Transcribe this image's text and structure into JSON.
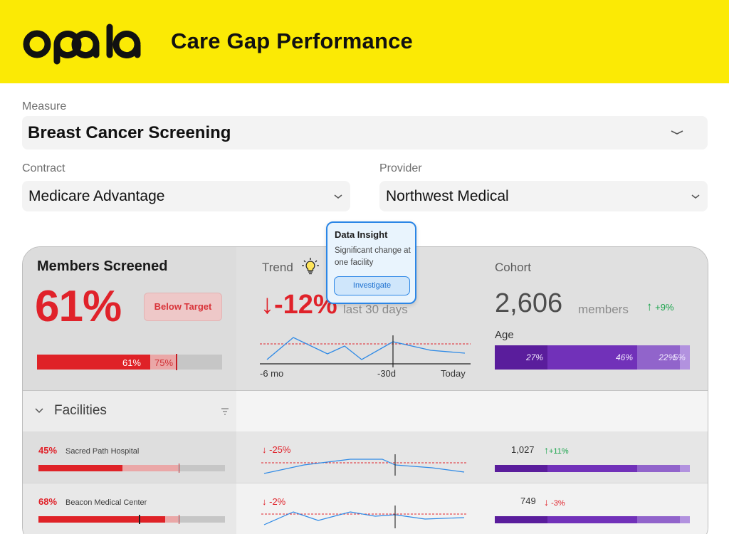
{
  "header": {
    "logo_text": "opala",
    "title": "Care Gap Performance",
    "bg_color": "#fbea05"
  },
  "filters": {
    "measure": {
      "label": "Measure",
      "value": "Breast Cancer Screening"
    },
    "contract": {
      "label": "Contract",
      "value": "Medicare Advantage"
    },
    "provider": {
      "label": "Provider",
      "value": "Northwest Medical"
    }
  },
  "summary": {
    "title": "Members Screened",
    "percent": "61%",
    "status_badge": "Below Target",
    "progress": {
      "value": 0.61,
      "target": 0.75,
      "value_label": "61%",
      "target_label": "75%"
    }
  },
  "trend": {
    "label": "Trend",
    "arrow": "↓",
    "change": "-12%",
    "period": "last 30 days",
    "x_labels": [
      "-6 mo",
      "-30d",
      "Today"
    ]
  },
  "cohort": {
    "label": "Cohort",
    "count": "2,606",
    "unit": "members",
    "change_arrow": "↑",
    "change": "+9%",
    "age_label": "Age",
    "age_segments": [
      {
        "label": "27%",
        "value": 27,
        "color": "#5a1d9c"
      },
      {
        "label": "46%",
        "value": 46,
        "color": "#7131b9"
      },
      {
        "label": "22%",
        "value": 22,
        "color": "#9164cb"
      },
      {
        "label": "5%",
        "value": 5,
        "color": "#b292df"
      }
    ]
  },
  "facilities": {
    "title": "Facilities",
    "rows": [
      {
        "percent": "45%",
        "name": "Sacred Path Hospital",
        "trend_arrow": "↓",
        "trend": "-25%",
        "count": "1,027",
        "change_arrow": "↑",
        "change": "+11%",
        "change_dir": "up",
        "value": 0.45,
        "target": 0.75
      },
      {
        "percent": "68%",
        "name": "Beacon Medical Center",
        "trend_arrow": "↓",
        "trend": "-2%",
        "count": "749",
        "change_arrow": "↓",
        "change": "-3%",
        "change_dir": "down",
        "value": 0.68,
        "target": 0.75
      }
    ]
  },
  "insight": {
    "title": "Data Insight",
    "body": "Significant change at one facility",
    "button": "Investigate"
  },
  "colors": {
    "accent_red": "#e0222a",
    "positive_green": "#1aa44c",
    "link_blue": "#2b86e6"
  }
}
